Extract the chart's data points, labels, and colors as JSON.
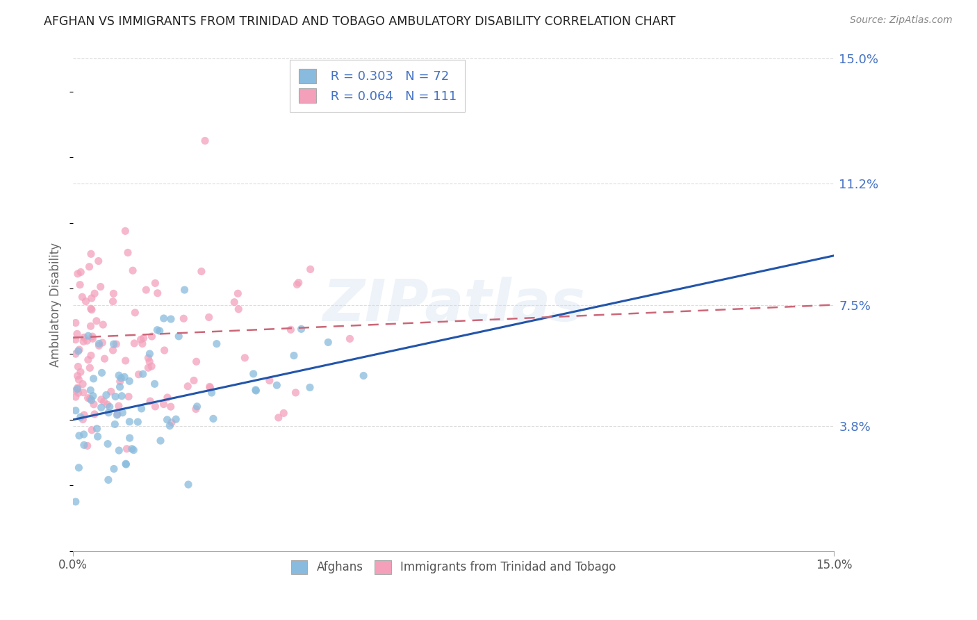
{
  "title": "AFGHAN VS IMMIGRANTS FROM TRINIDAD AND TOBAGO AMBULATORY DISABILITY CORRELATION CHART",
  "source": "Source: ZipAtlas.com",
  "ylabel": "Ambulatory Disability",
  "x_min": 0.0,
  "x_max": 15.0,
  "y_min": 0.0,
  "y_max": 15.0,
  "y_ticks": [
    0.0,
    3.8,
    7.5,
    11.2,
    15.0
  ],
  "y_tick_labels": [
    "",
    "3.8%",
    "7.5%",
    "11.2%",
    "15.0%"
  ],
  "series1_label": "Afghans",
  "series1_color": "#88bbdd",
  "series1_R": 0.303,
  "series1_N": 72,
  "series2_label": "Immigrants from Trinidad and Tobago",
  "series2_color": "#f4a0bb",
  "series2_R": 0.064,
  "series2_N": 111,
  "legend_R1": "R = 0.303",
  "legend_N1": "N = 72",
  "legend_R2": "R = 0.064",
  "legend_N2": "N = 111",
  "trend1_color": "#2255aa",
  "trend2_color": "#cc6677",
  "background_color": "#ffffff",
  "watermark": "ZIPatlas"
}
